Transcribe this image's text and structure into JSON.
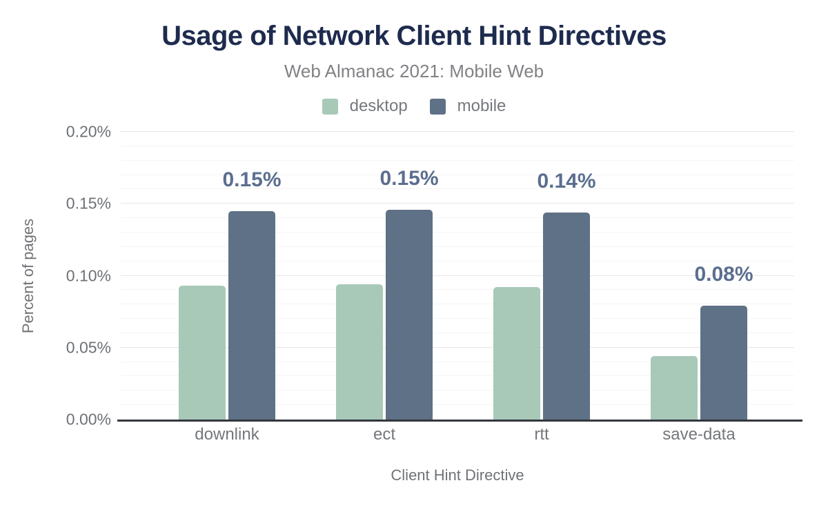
{
  "chart_data": {
    "type": "bar",
    "title": "Usage of Network Client Hint Directives",
    "subtitle": "Web Almanac 2021: Mobile Web",
    "xlabel": "Client Hint Directive",
    "ylabel": "Percent of pages",
    "categories": [
      "downlink",
      "ect",
      "rtt",
      "save-data"
    ],
    "series": [
      {
        "name": "desktop",
        "color": "#a8c9b8",
        "values": [
          0.093,
          0.094,
          0.092,
          0.044
        ]
      },
      {
        "name": "mobile",
        "color": "#5f7186",
        "values": [
          0.145,
          0.146,
          0.144,
          0.079
        ],
        "value_labels": [
          "0.15%",
          "0.15%",
          "0.14%",
          "0.08%"
        ]
      }
    ],
    "ylim": [
      0,
      0.2
    ],
    "yticks": [
      {
        "value": 0.0,
        "label": "0.00%"
      },
      {
        "value": 0.05,
        "label": "0.05%"
      },
      {
        "value": 0.1,
        "label": "0.10%"
      },
      {
        "value": 0.15,
        "label": "0.15%"
      },
      {
        "value": 0.2,
        "label": "0.20%"
      }
    ],
    "minor_gridline_step": 0.01,
    "major_gridline_step": 0.05,
    "grid": true,
    "legend_position": "top"
  },
  "colors": {
    "title_text": "#1e2b4e",
    "subtitle_text": "#808285",
    "tick_text": "#6e7175",
    "axis_title_text": "#6f7276",
    "data_label_text": "#5b6e8f",
    "desktop_series": "#a8c9b8",
    "mobile_series": "#5f7186",
    "gridline_major": "#e6e6e6",
    "gridline_minor": "#f4f4f4",
    "axis_baseline": "#33373d"
  }
}
